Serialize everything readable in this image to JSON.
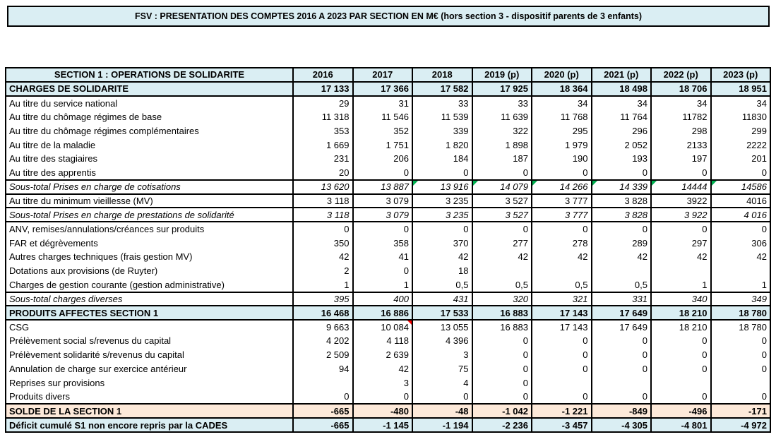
{
  "title": {
    "text": "FSV : PRESENTATION DES COMPTES 2016 A 2023 PAR SECTION EN M€ (hors section 3 - dispositif parents de 3  enfants)"
  },
  "colors": {
    "header_blue": "#DAEEF3",
    "solde_peach": "#FDE9D9",
    "border": "#000000",
    "error_flag_green": "#00B050",
    "comment_flag_red": "#FF0000"
  },
  "icons": {
    "error_flag": "green-triangle-top-left",
    "comment_flag": "red-triangle-top-right"
  },
  "table": {
    "header": {
      "label": "SECTION 1 : OPERATIONS DE SOLIDARITE",
      "years": [
        "2016",
        "2017",
        "2018",
        "2019 (p)",
        "2020 (p)",
        "2021 (p)",
        "2022 (p)",
        "2023 (p)"
      ]
    },
    "rows": [
      {
        "label": "CHARGES DE SOLIDARITE",
        "kind": "section",
        "values": [
          "17 133",
          "17 366",
          "17 582",
          "17 925",
          "18 364",
          "18 498",
          "18 706",
          "18 951"
        ]
      },
      {
        "label": "Au titre du service national",
        "kind": "row",
        "values": [
          "29",
          "31",
          "33",
          "33",
          "34",
          "34",
          "34",
          "34"
        ]
      },
      {
        "label": "Au titre du chômage régimes de base",
        "kind": "row",
        "values": [
          "11 318",
          "11 546",
          "11 539",
          "11 639",
          "11 768",
          "11 764",
          "11782",
          "11830"
        ]
      },
      {
        "label": "Au titre du chômage régimes complémentaires",
        "kind": "row",
        "values": [
          "353",
          "352",
          "339",
          "322",
          "295",
          "296",
          "298",
          "299"
        ]
      },
      {
        "label": "Au titre de la maladie",
        "kind": "row",
        "values": [
          "1 669",
          "1 751",
          "1 820",
          "1 898",
          "1 979",
          "2 052",
          "2133",
          "2222"
        ]
      },
      {
        "label": "Au titre des stagiaires",
        "kind": "row",
        "values": [
          "231",
          "206",
          "184",
          "187",
          "190",
          "193",
          "197",
          "201"
        ]
      },
      {
        "label": "Au titre des apprentis",
        "kind": "row",
        "values": [
          "20",
          "0",
          "0",
          "0",
          "0",
          "0",
          "0",
          "0"
        ]
      },
      {
        "label": "Sous-total Prises en charge de cotisations",
        "kind": "subtotal",
        "values": [
          "13 620",
          "13 887",
          "13 916",
          "14 079",
          "14 266",
          "14 339",
          "14444",
          "14586"
        ],
        "green_flags": [
          2,
          3,
          4,
          5,
          6,
          7
        ]
      },
      {
        "label": "Au titre du minimum vieillesse (MV)",
        "kind": "row",
        "values": [
          "3 118",
          "3 079",
          "3 235",
          "3 527",
          "3 777",
          "3 828",
          "3922",
          "4016"
        ]
      },
      {
        "label": "Sous-total Prises en charge de prestations de solidarité",
        "kind": "subtotal",
        "values": [
          "3 118",
          "3 079",
          "3 235",
          "3 527",
          "3 777",
          "3 828",
          "3 922",
          "4 016"
        ]
      },
      {
        "label": "ANV, remises/annulations/créances sur produits",
        "kind": "row",
        "values": [
          "0",
          "0",
          "0",
          "0",
          "0",
          "0",
          "0",
          "0"
        ]
      },
      {
        "label": "FAR et dégrèvements",
        "kind": "row",
        "values": [
          "350",
          "358",
          "370",
          "277",
          "278",
          "289",
          "297",
          "306"
        ]
      },
      {
        "label": "Autres charges techniques (frais gestion MV)",
        "kind": "row",
        "values": [
          "42",
          "41",
          "42",
          "42",
          "42",
          "42",
          "42",
          "42"
        ]
      },
      {
        "label": "Dotations aux provisions (de Ruyter)",
        "kind": "row",
        "values": [
          "2",
          "0",
          "18",
          "",
          "",
          "",
          "",
          ""
        ]
      },
      {
        "label": "Charges de gestion courante (gestion administrative)",
        "kind": "row",
        "values": [
          "1",
          "1",
          "0,5",
          "0,5",
          "0,5",
          "0,5",
          "1",
          "1"
        ]
      },
      {
        "label": "Sous-total charges diverses",
        "kind": "subtotal",
        "values": [
          "395",
          "400",
          "431",
          "320",
          "321",
          "331",
          "340",
          "349"
        ]
      },
      {
        "label": "PRODUITS AFFECTES SECTION 1",
        "kind": "section",
        "values": [
          "16 468",
          "16 886",
          "17 533",
          "16 883",
          "17 143",
          "17 649",
          "18 210",
          "18 780"
        ]
      },
      {
        "label": "CSG",
        "kind": "row",
        "values": [
          "9 663",
          "10 084",
          "13 055",
          "16 883",
          "17 143",
          "17 649",
          "18 210",
          "18 780"
        ],
        "red_flags": [
          1
        ]
      },
      {
        "label": "Prélèvement social s/revenus du capital",
        "kind": "row",
        "values": [
          "4 202",
          "4 118",
          "4 396",
          "0",
          "0",
          "0",
          "0",
          "0"
        ]
      },
      {
        "label": "Prélèvement solidarité s/revenus du capital",
        "kind": "row",
        "values": [
          "2 509",
          "2 639",
          "3",
          "0",
          "0",
          "0",
          "0",
          "0"
        ]
      },
      {
        "label": "Annulation de charge sur exercice antérieur",
        "kind": "row",
        "values": [
          "94",
          "42",
          "75",
          "0",
          "0",
          "0",
          "0",
          "0"
        ]
      },
      {
        "label": "Reprises sur provisions",
        "kind": "row",
        "values": [
          "",
          "3",
          "4",
          "0",
          "",
          "",
          "",
          ""
        ]
      },
      {
        "label": "Produits divers",
        "kind": "row",
        "values": [
          "0",
          "0",
          "0",
          "0",
          "0",
          "0",
          "0",
          "0"
        ]
      },
      {
        "label": "SOLDE DE LA SECTION 1",
        "kind": "solde",
        "values": [
          "-665",
          "-480",
          "-48",
          "-1 042",
          "-1 221",
          "-849",
          "-496",
          "-171"
        ]
      },
      {
        "label": "Déficit cumulé S1 non encore  repris par la CADES",
        "kind": "section",
        "values": [
          "-665",
          "-1 145",
          "-1 194",
          "-2 236",
          "-3 457",
          "-4 305",
          "-4 801",
          "-4 972"
        ]
      }
    ]
  }
}
